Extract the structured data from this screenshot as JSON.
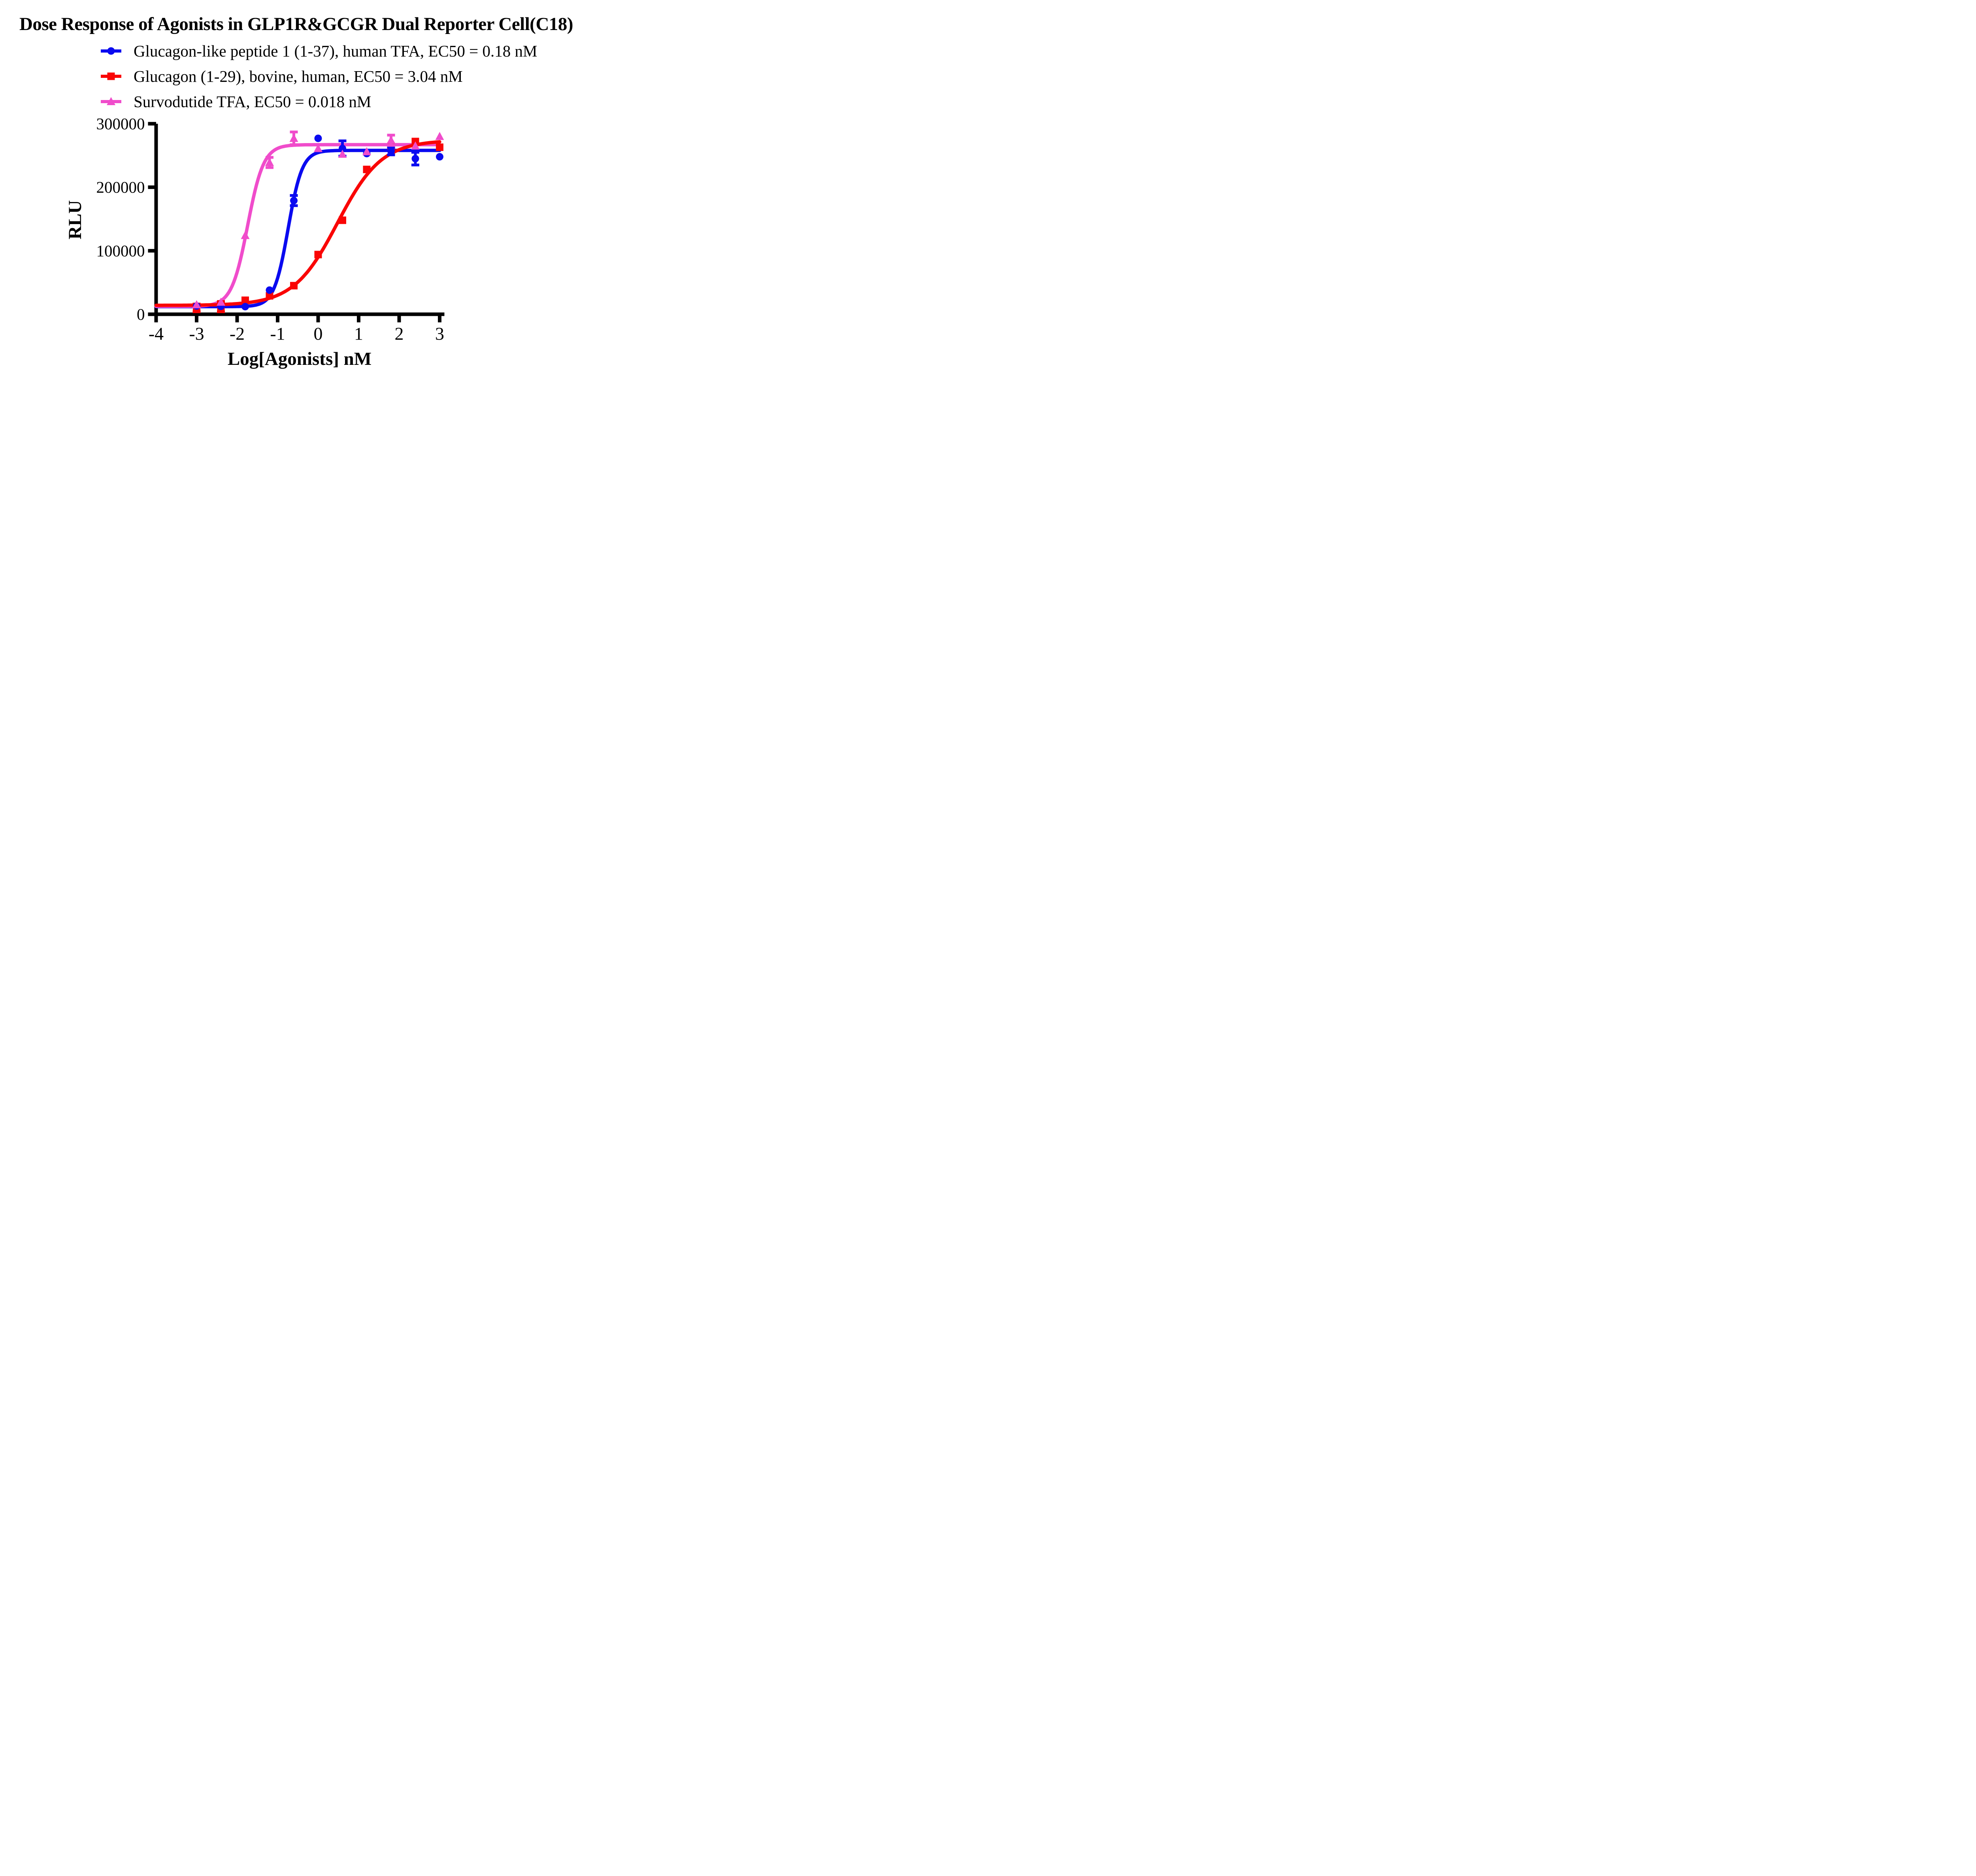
{
  "title": "Dose Response of Agonists in GLP1R&GCGR Dual Reporter Cell(C18)",
  "legend": [
    {
      "label": "Glucagon-like peptide 1 (1-37), human TFA, EC50 = 0.18 nM",
      "color": "#0A0AF0",
      "marker": "circle"
    },
    {
      "label": "Glucagon (1-29), bovine, human, EC50 = 3.04 nM",
      "color": "#FA0505",
      "marker": "square"
    },
    {
      "label": "Survodutide TFA, EC50 = 0.018 nM",
      "color": "#F04CCB",
      "marker": "triangle"
    }
  ],
  "chart_data": {
    "type": "scatter",
    "subtype": "dose-response sigmoid curves with error bars",
    "title": "Dose Response of Agonists in GLP1R&GCGR Dual Reporter Cell(C18)",
    "xlabel": "Log[Agonists] nM",
    "ylabel": "RLU",
    "xlim": [
      -4,
      3
    ],
    "ylim": [
      0,
      300000
    ],
    "x_ticks": [
      -4,
      -3,
      -2,
      -1,
      0,
      1,
      2,
      3
    ],
    "y_ticks": [
      0,
      100000,
      200000,
      300000
    ],
    "grid": false,
    "legend_position": "top-left above plot",
    "x": [
      -3,
      -2.4,
      -1.8,
      -1.2,
      -0.6,
      0,
      0.6,
      1.2,
      1.8,
      2.4,
      3
    ],
    "series": [
      {
        "name": "Glucagon-like peptide 1 (1-37), human TFA",
        "ec50_label": "EC50 = 0.18 nM",
        "marker": "circle",
        "color": "#0A0AF0",
        "values": [
          13000,
          12500,
          12000,
          38000,
          179000,
          277000,
          261000,
          253000,
          257000,
          245000,
          248000
        ],
        "errors": [
          0,
          0,
          0,
          0,
          8000,
          0,
          12000,
          0,
          6000,
          10000,
          0
        ],
        "fit": {
          "bottom": 12000,
          "top": 258000,
          "logEC50": -0.74,
          "hill": 2.5
        }
      },
      {
        "name": "Glucagon (1-29), bovine, human",
        "ec50_label": "EC50 = 3.04 nM",
        "marker": "square",
        "color": "#FA0505",
        "values": [
          10000,
          12000,
          22000,
          29000,
          45000,
          94000,
          148000,
          228000,
          265000,
          272000,
          263000
        ],
        "errors": [
          6000,
          8000,
          0,
          0,
          0,
          0,
          0,
          0,
          0,
          0,
          0
        ],
        "fit": {
          "bottom": 14000,
          "top": 274000,
          "logEC50": 0.48,
          "hill": 0.8
        }
      },
      {
        "name": "Survodutide TFA",
        "ec50_label": "EC50 = 0.018 nM",
        "marker": "triangle",
        "color": "#F04CCB",
        "values": [
          15000,
          19000,
          124000,
          239000,
          277000,
          261000,
          252000,
          256000,
          274000,
          265000,
          280000
        ],
        "errors": [
          0,
          0,
          0,
          8000,
          10000,
          0,
          0,
          0,
          8000,
          0,
          0
        ],
        "fit": {
          "bottom": 12500,
          "top": 267000,
          "logEC50": -1.74,
          "hill": 2.2
        }
      }
    ]
  }
}
